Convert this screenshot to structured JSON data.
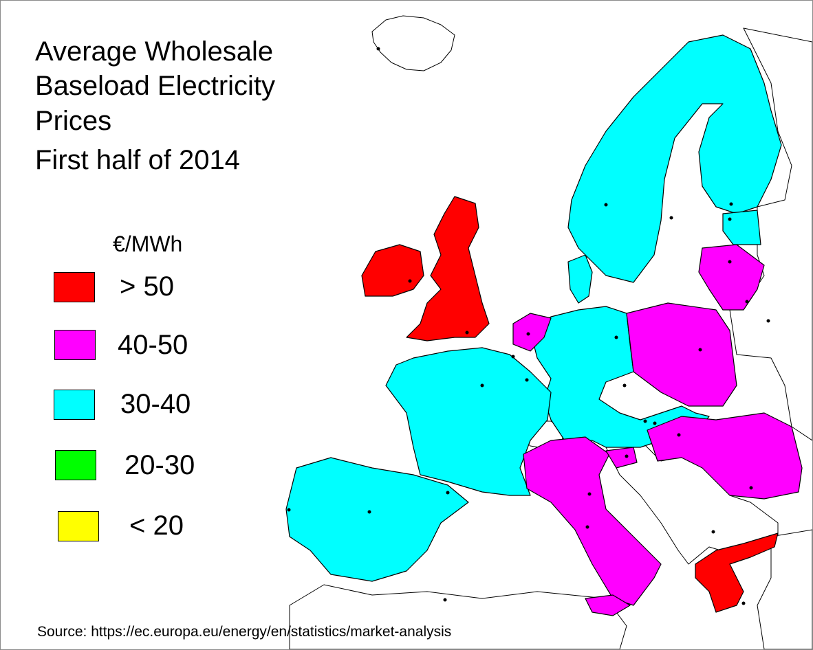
{
  "title": {
    "lines": [
      "Average Wholesale",
      "Baseload Electricity",
      "Prices",
      "First half of 2014"
    ]
  },
  "legend": {
    "unit": "€/MWh",
    "items": [
      {
        "label": "> 50",
        "color": "#ff0000"
      },
      {
        "label": "40-50",
        "color": "#ff00ff"
      },
      {
        "label": "30-40",
        "color": "#00ffff"
      },
      {
        "label": "20-30",
        "color": "#00ff00"
      },
      {
        "label": "< 20",
        "color": "#ffff00"
      }
    ]
  },
  "source": "Source: https://ec.europa.eu/energy/en/statistics/market-analysis",
  "countries": {
    "above_50": [
      "United Kingdom",
      "Ireland",
      "Greece"
    ],
    "range_40_50": [
      "Netherlands",
      "Poland",
      "Lithuania",
      "Latvia",
      "Hungary",
      "Romania",
      "Italy",
      "Slovenia"
    ],
    "range_30_40": [
      "Norway",
      "Sweden",
      "Finland",
      "Estonia",
      "Denmark",
      "Germany",
      "France",
      "Belgium",
      "Spain",
      "Portugal",
      "Austria",
      "Czech Republic",
      "Slovakia"
    ],
    "range_20_30": [],
    "below_20": []
  },
  "colors": {
    "no_data": "#ffffff",
    "border": "#000000"
  }
}
